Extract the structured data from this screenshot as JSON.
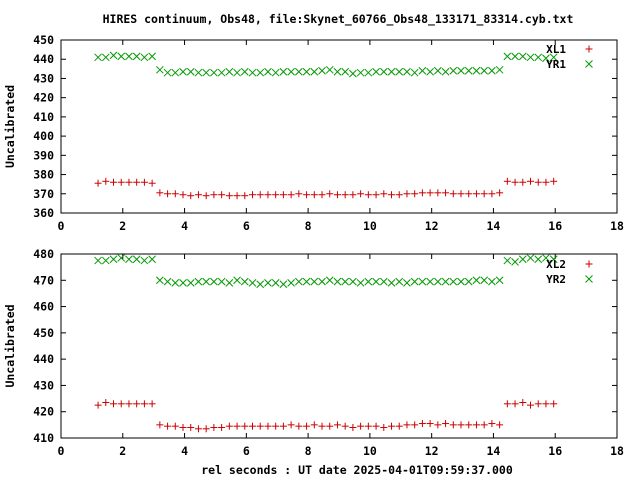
{
  "title": "HIRES continuum, Obs48, file:Skynet_60766_Obs48_133171_83314.cyb.txt",
  "colors": {
    "xl": "#cc0000",
    "yr": "#009900",
    "axis": "#000000",
    "background": "#ffffff"
  },
  "chart_data": [
    {
      "type": "scatter",
      "ylabel": "Uncalibrated",
      "xlabel": "",
      "xlim": [
        0,
        18
      ],
      "ylim": [
        360,
        450
      ],
      "xticks": [
        0,
        2,
        4,
        6,
        8,
        10,
        12,
        14,
        16,
        18
      ],
      "yticks": [
        360,
        370,
        380,
        390,
        400,
        410,
        420,
        430,
        440,
        450
      ],
      "grid": false,
      "legend_position": "top-right",
      "series": [
        {
          "name": "XL1",
          "marker": "plus",
          "color": "#cc0000",
          "x": [
            1.2,
            1.45,
            1.7,
            1.95,
            2.2,
            2.45,
            2.7,
            2.95,
            3.2,
            3.45,
            3.7,
            3.95,
            4.2,
            4.45,
            4.7,
            4.95,
            5.2,
            5.45,
            5.7,
            5.95,
            6.2,
            6.45,
            6.7,
            6.95,
            7.2,
            7.45,
            7.7,
            7.95,
            8.2,
            8.45,
            8.7,
            8.95,
            9.2,
            9.45,
            9.7,
            9.95,
            10.2,
            10.45,
            10.7,
            10.95,
            11.2,
            11.45,
            11.7,
            11.95,
            12.2,
            12.45,
            12.7,
            12.95,
            13.2,
            13.45,
            13.7,
            13.95,
            14.2,
            14.45,
            14.7,
            14.95,
            15.2,
            15.45,
            15.7,
            15.95
          ],
          "y": [
            375.5,
            376.5,
            376,
            376,
            376,
            376,
            376,
            375.5,
            370.5,
            370,
            370,
            369.5,
            369,
            369.5,
            369,
            369.5,
            369.5,
            369,
            369,
            369,
            369.5,
            369.5,
            369.5,
            369.5,
            369.5,
            369.5,
            370,
            369.5,
            369.5,
            369.5,
            370,
            369.5,
            369.5,
            369.5,
            370,
            369.5,
            369.5,
            370,
            369.5,
            369.5,
            370,
            370,
            370.5,
            370.5,
            370.5,
            370.5,
            370,
            370,
            370,
            370,
            370,
            370,
            370.5,
            376.5,
            376,
            376,
            376.5,
            376,
            376,
            376.5
          ]
        },
        {
          "name": "YR1",
          "marker": "cross",
          "color": "#009900",
          "x": [
            1.2,
            1.45,
            1.7,
            1.95,
            2.2,
            2.45,
            2.7,
            2.95,
            3.2,
            3.45,
            3.7,
            3.95,
            4.2,
            4.45,
            4.7,
            4.95,
            5.2,
            5.45,
            5.7,
            5.95,
            6.2,
            6.45,
            6.7,
            6.95,
            7.2,
            7.45,
            7.7,
            7.95,
            8.2,
            8.45,
            8.7,
            8.95,
            9.2,
            9.45,
            9.7,
            9.95,
            10.2,
            10.45,
            10.7,
            10.95,
            11.2,
            11.45,
            11.7,
            11.95,
            12.2,
            12.45,
            12.7,
            12.95,
            13.2,
            13.45,
            13.7,
            13.95,
            14.2,
            14.45,
            14.7,
            14.95,
            15.2,
            15.45,
            15.7,
            15.95
          ],
          "y": [
            441,
            441,
            442,
            441.5,
            441.5,
            441.5,
            441,
            441.5,
            434.5,
            433,
            433,
            433.5,
            433.5,
            433,
            433,
            433,
            433,
            433.5,
            433,
            433.5,
            433,
            433,
            433.5,
            433,
            433.5,
            433.5,
            433.5,
            433.5,
            433.5,
            434,
            434.5,
            433.5,
            433.5,
            432.5,
            433,
            433,
            433.5,
            433.5,
            433.5,
            433.5,
            433.5,
            433,
            434,
            433.5,
            434,
            433.5,
            434,
            434,
            434,
            434,
            434,
            434,
            434.5,
            441.5,
            441.5,
            441.5,
            441,
            441,
            440.5,
            441
          ]
        }
      ]
    },
    {
      "type": "scatter",
      "ylabel": "Uncalibrated",
      "xlabel": "rel seconds : UT date 2025-04-01T09:59:37.000",
      "xlim": [
        0,
        18
      ],
      "ylim": [
        410,
        480
      ],
      "xticks": [
        0,
        2,
        4,
        6,
        8,
        10,
        12,
        14,
        16,
        18
      ],
      "yticks": [
        410,
        420,
        430,
        440,
        450,
        460,
        470,
        480
      ],
      "grid": false,
      "legend_position": "top-right",
      "series": [
        {
          "name": "XL2",
          "marker": "plus",
          "color": "#cc0000",
          "x": [
            1.2,
            1.45,
            1.7,
            1.95,
            2.2,
            2.45,
            2.7,
            2.95,
            3.2,
            3.45,
            3.7,
            3.95,
            4.2,
            4.45,
            4.7,
            4.95,
            5.2,
            5.45,
            5.7,
            5.95,
            6.2,
            6.45,
            6.7,
            6.95,
            7.2,
            7.45,
            7.7,
            7.95,
            8.2,
            8.45,
            8.7,
            8.95,
            9.2,
            9.45,
            9.7,
            9.95,
            10.2,
            10.45,
            10.7,
            10.95,
            11.2,
            11.45,
            11.7,
            11.95,
            12.2,
            12.45,
            12.7,
            12.95,
            13.2,
            13.45,
            13.7,
            13.95,
            14.2,
            14.45,
            14.7,
            14.95,
            15.2,
            15.45,
            15.7,
            15.95
          ],
          "y": [
            422.5,
            423.5,
            423,
            423,
            423,
            423,
            423,
            423,
            415,
            414.5,
            414.5,
            414,
            414,
            413.5,
            413.5,
            414,
            414,
            414.5,
            414.5,
            414.5,
            414.5,
            414.5,
            414.5,
            414.5,
            414.5,
            415,
            414.5,
            414.5,
            415,
            414.5,
            414.5,
            415,
            414.5,
            414,
            414.5,
            414.5,
            414.5,
            414,
            414.5,
            414.5,
            415,
            415,
            415.5,
            415.5,
            415,
            415.5,
            415,
            415,
            415,
            415,
            415,
            415.5,
            415,
            423,
            423,
            423.5,
            422.5,
            423,
            423,
            423
          ]
        },
        {
          "name": "YR2",
          "marker": "cross",
          "color": "#009900",
          "x": [
            1.2,
            1.45,
            1.7,
            1.95,
            2.2,
            2.45,
            2.7,
            2.95,
            3.2,
            3.45,
            3.7,
            3.95,
            4.2,
            4.45,
            4.7,
            4.95,
            5.2,
            5.45,
            5.7,
            5.95,
            6.2,
            6.45,
            6.7,
            6.95,
            7.2,
            7.45,
            7.7,
            7.95,
            8.2,
            8.45,
            8.7,
            8.95,
            9.2,
            9.45,
            9.7,
            9.95,
            10.2,
            10.45,
            10.7,
            10.95,
            11.2,
            11.45,
            11.7,
            11.95,
            12.2,
            12.45,
            12.7,
            12.95,
            13.2,
            13.45,
            13.7,
            13.95,
            14.2,
            14.45,
            14.7,
            14.95,
            15.2,
            15.45,
            15.7,
            15.95
          ],
          "y": [
            477.5,
            477.5,
            478,
            478.5,
            478,
            478,
            477.5,
            478,
            470,
            469.5,
            469,
            469,
            469,
            469.5,
            469.5,
            469.5,
            469.5,
            469,
            470,
            469.5,
            469,
            468.5,
            469,
            469,
            468.5,
            469,
            469.5,
            469.5,
            469.5,
            469.5,
            470,
            469.5,
            469.5,
            469.5,
            469,
            469.5,
            469.5,
            469.5,
            469,
            469.5,
            469,
            469.5,
            469.5,
            469.5,
            469.5,
            469.5,
            469.5,
            469.5,
            469.5,
            470,
            470,
            469.5,
            470,
            477.5,
            477,
            478,
            478.5,
            478,
            478.5,
            478
          ]
        }
      ]
    }
  ]
}
